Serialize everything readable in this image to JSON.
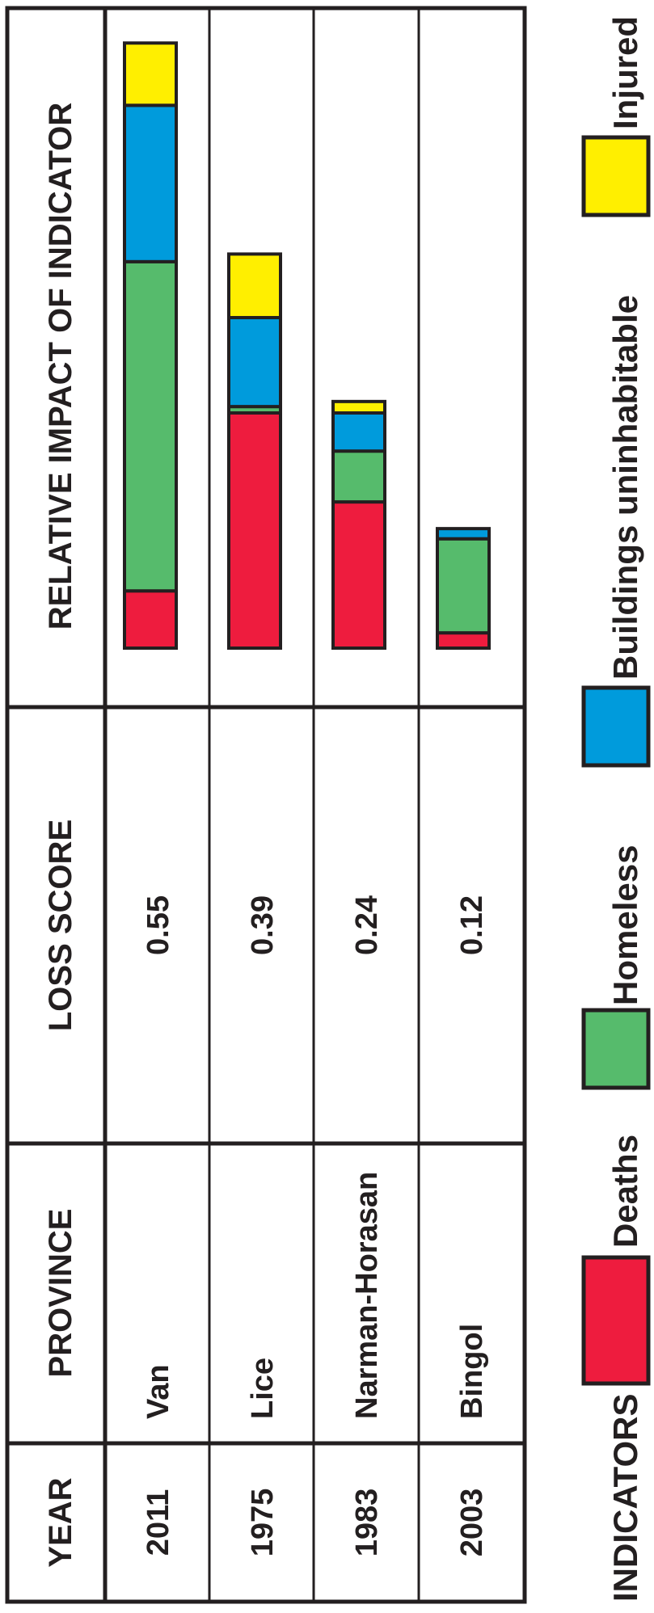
{
  "headers": {
    "year": "YEAR",
    "province": "PROVINCE",
    "loss_score": "LOSS SCORE",
    "impact": "RELATIVE IMPACT OF INDICATOR"
  },
  "rows": [
    {
      "year": "2011",
      "province": "Van",
      "score": "0.55"
    },
    {
      "year": "1975",
      "province": "Lice",
      "score": "0.39"
    },
    {
      "year": "1983",
      "province": "Narman-Horasan",
      "score": "0.24"
    },
    {
      "year": "2003",
      "province": "Bingol",
      "score": "0.12"
    }
  ],
  "legend": {
    "title": "INDICATORS",
    "items": [
      {
        "label": "Deaths",
        "color": "#ee1c3e"
      },
      {
        "label": "Homeless",
        "color": "#56bb6c"
      },
      {
        "label": "Buildings uninhabitable",
        "color": "#009bdc"
      },
      {
        "label": "Injured",
        "color": "#ffef00"
      }
    ]
  },
  "chart_data": {
    "type": "bar",
    "stacked": true,
    "orientation": "horizontal",
    "title": "RELATIVE IMPACT OF INDICATOR",
    "categories": [
      "Van",
      "Lice",
      "Narman-Horasan",
      "Bingol"
    ],
    "series": [
      {
        "name": "Deaths",
        "color": "#ee1c3e",
        "values": [
          0.045,
          0.185,
          0.115,
          0.012
        ]
      },
      {
        "name": "Homeless",
        "color": "#56bb6c",
        "values": [
          0.259,
          0.005,
          0.04,
          0.074
        ]
      },
      {
        "name": "Buildings uninhabitable",
        "color": "#009bdc",
        "values": [
          0.123,
          0.07,
          0.03,
          0.008
        ]
      },
      {
        "name": "Injured",
        "color": "#ffef00",
        "values": [
          0.049,
          0.05,
          0.009,
          0.0
        ]
      }
    ],
    "xlim": [
      0,
      0.476
    ]
  }
}
